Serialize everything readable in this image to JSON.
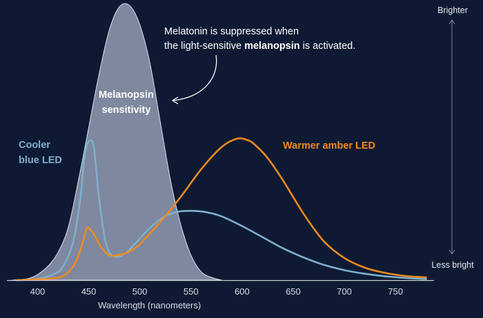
{
  "chart_data": {
    "type": "area",
    "title": "",
    "xlabel": "Wavelength (nanometers)",
    "ylabel": "",
    "xlim": [
      370,
      785
    ],
    "ylim": [
      0,
      1
    ],
    "x_ticks": [
      400,
      450,
      500,
      550,
      600,
      650,
      700,
      750
    ],
    "y_axis_top_label": "Brighter",
    "y_axis_bottom_label": "Less bright",
    "series": [
      {
        "name": "Melanopsin sensitivity",
        "label_lines": [
          "Melanopsin",
          "sensitivity"
        ],
        "style": "filled-area",
        "color": "#8e97ad",
        "x": [
          375,
          390,
          400,
          410,
          420,
          430,
          440,
          450,
          460,
          470,
          480,
          490,
          500,
          510,
          520,
          530,
          540,
          550,
          560,
          570,
          580
        ],
        "y": [
          0.0,
          0.005,
          0.02,
          0.05,
          0.1,
          0.19,
          0.36,
          0.55,
          0.74,
          0.9,
          0.985,
          0.99,
          0.92,
          0.78,
          0.57,
          0.36,
          0.2,
          0.09,
          0.03,
          0.01,
          0.0
        ]
      },
      {
        "name": "Cooler blue LED",
        "label_lines": [
          "Cooler",
          "blue LED"
        ],
        "style": "line",
        "color": "#7fb0cc",
        "x": [
          380,
          400,
          415,
          425,
          435,
          442,
          446,
          450,
          455,
          460,
          467,
          475,
          485,
          495,
          505,
          520,
          535,
          550,
          565,
          580,
          600,
          620,
          640,
          660,
          680,
          700,
          720,
          740,
          760,
          780
        ],
        "y": [
          0.0,
          0.005,
          0.02,
          0.05,
          0.14,
          0.3,
          0.45,
          0.5,
          0.48,
          0.3,
          0.13,
          0.085,
          0.095,
          0.13,
          0.17,
          0.22,
          0.245,
          0.25,
          0.245,
          0.23,
          0.195,
          0.155,
          0.115,
          0.082,
          0.055,
          0.036,
          0.023,
          0.014,
          0.008,
          0.004
        ]
      },
      {
        "name": "Warmer amber LED",
        "label_lines": [
          "Warmer amber LED"
        ],
        "style": "line",
        "color": "#f08a1e",
        "x": [
          380,
          410,
          425,
          435,
          442,
          448,
          452,
          456,
          462,
          470,
          478,
          488,
          500,
          520,
          540,
          560,
          580,
          595,
          605,
          612,
          625,
          640,
          660,
          680,
          700,
          720,
          740,
          760,
          780
        ],
        "y": [
          0.0,
          0.005,
          0.015,
          0.05,
          0.11,
          0.185,
          0.18,
          0.16,
          0.12,
          0.09,
          0.09,
          0.1,
          0.13,
          0.21,
          0.3,
          0.4,
          0.48,
          0.51,
          0.505,
          0.49,
          0.44,
          0.36,
          0.24,
          0.14,
          0.08,
          0.045,
          0.026,
          0.015,
          0.01
        ]
      }
    ],
    "annotations": [
      {
        "text_lines": [
          [
            {
              "text": "Melatonin is suppressed when",
              "bold": false
            }
          ],
          [
            {
              "text": "the light-sensitive ",
              "bold": false
            },
            {
              "text": "melanopsin",
              "bold": true
            },
            {
              "text": " is activated.",
              "bold": false
            }
          ]
        ],
        "arrow_to": "Melanopsin sensitivity"
      }
    ],
    "colors": {
      "background": "#0e1a33",
      "axis": "#c9ced8",
      "text": "#d9dee8"
    }
  }
}
